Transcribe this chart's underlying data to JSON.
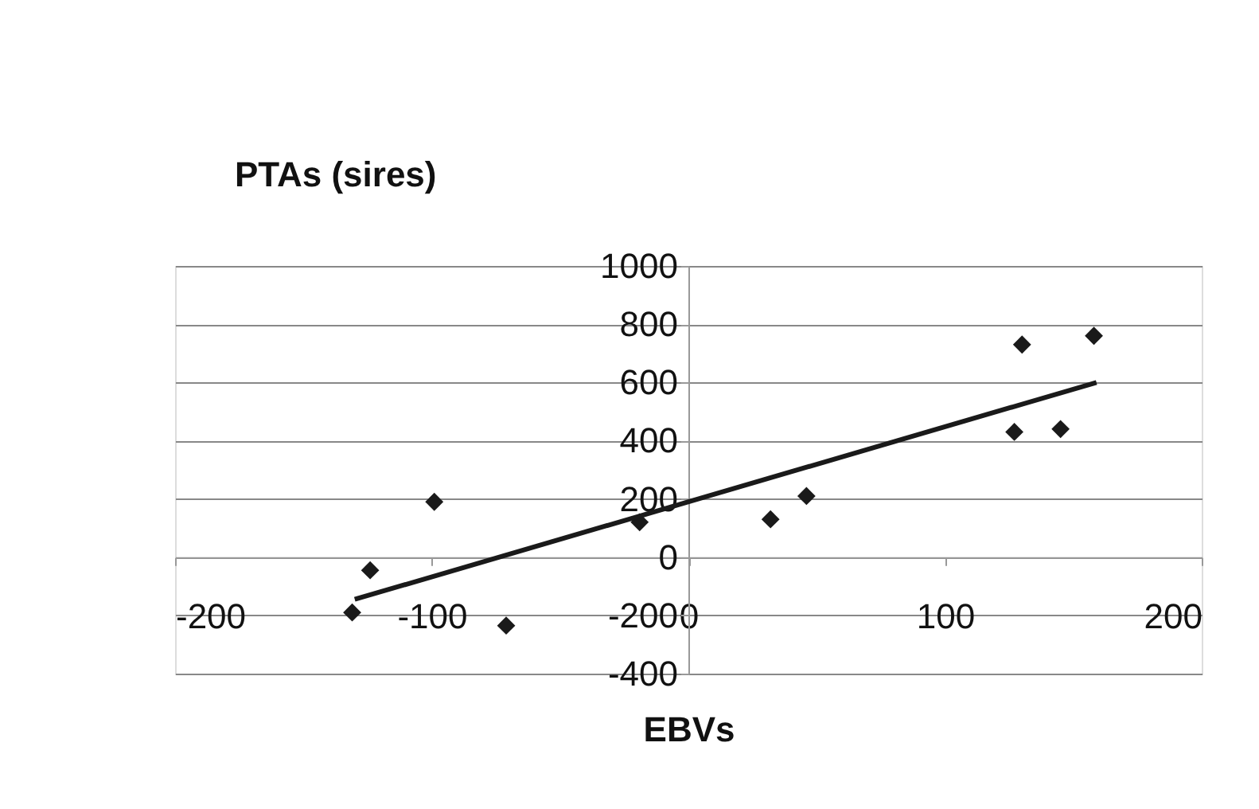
{
  "chart_data": {
    "type": "scatter",
    "ylabel": "PTAs (sires)",
    "xlabel": "EBVs",
    "series": [
      {
        "color": "#1a1a1a",
        "marker": "diamond",
        "x": [
          -131,
          -124,
          -99,
          -71,
          -19,
          32,
          46,
          127,
          130,
          145,
          158
        ],
        "values": [
          -190,
          -45,
          190,
          -235,
          120,
          130,
          210,
          430,
          730,
          440,
          760
        ]
      },
      {
        "type": "line",
        "color": "#1a1a1a",
        "line_style": "solid",
        "x": [
          -130,
          159
        ],
        "values": [
          -145,
          600
        ]
      }
    ],
    "xlim": [
      -200,
      200
    ],
    "xticks": [
      -200,
      -100,
      0,
      100,
      200
    ],
    "ylim": [
      -400,
      1000
    ],
    "yticks": [
      -400,
      -200,
      0,
      200,
      400,
      600,
      800,
      1000
    ],
    "grid": "y",
    "legend": false
  }
}
